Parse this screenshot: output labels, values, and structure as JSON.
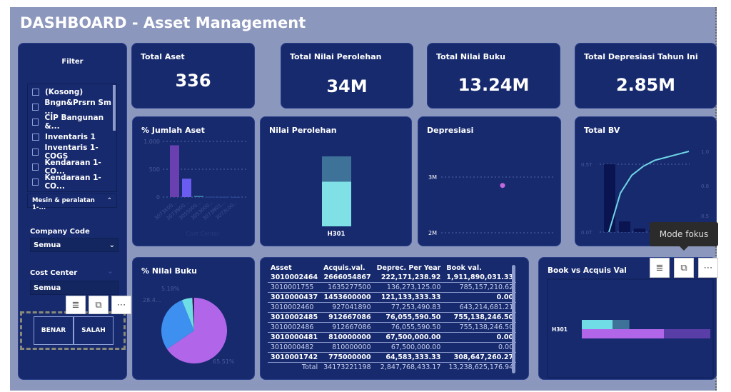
{
  "header": {
    "title": "DASHBOARD - Asset Management"
  },
  "filter": {
    "title": "Filter",
    "items": [
      "(Kosong)",
      "Bngn&Prsrn Sm ...",
      "CIP Bangunan &...",
      "Inventaris 1",
      "Inventaris 1-COGS",
      "Kendaraan 1-CO...",
      "Kendaraan 1-CO..."
    ],
    "selected": "Mesin & peralatan 1-...",
    "company_code": {
      "label": "Company Code",
      "value": "Semua"
    },
    "cost_center": {
      "label": "Cost Center",
      "value": "Semua"
    },
    "buttons": [
      "BENAR",
      "SALAH"
    ]
  },
  "kpis": [
    {
      "label": "Total Aset",
      "value": "336"
    },
    {
      "label": "Total Nilai Perolehan",
      "value": "34M"
    },
    {
      "label": "Total Nilai Buku",
      "value": "13.24M"
    },
    {
      "label": "Total Depresiasi Tahun Ini",
      "value": "2.85M"
    }
  ],
  "charts": {
    "jumlah_aset": {
      "title": "% Jumlah Aset",
      "type": "bar",
      "categories": [
        "3073K00...",
        "3073N00...",
        "3055000...",
        "3053000...",
        "3073N01...",
        "3073L00..."
      ],
      "values": [
        930,
        330,
        20,
        5,
        3,
        2
      ],
      "yticks": [
        "1,000",
        "500",
        "0"
      ],
      "xlabel": "Cost Center",
      "colors": [
        "#6a3fb0",
        "#6a5cf0",
        "#3a86a8",
        "#2f4a9a",
        "#2f4a9a",
        "#2f4a9a"
      ]
    },
    "nilai_perolehan": {
      "title": "Nilai Perolehan",
      "category": "H301",
      "segments": [
        {
          "value": 0.64,
          "color": "#7fe0e6"
        },
        {
          "value": 0.36,
          "color": "#3f7299"
        }
      ]
    },
    "depresiasi": {
      "title": "Depresiasi",
      "yticks": [
        "3M",
        "2M"
      ],
      "point": 2.85,
      "color": "#c16ae0"
    },
    "total_bv": {
      "title": "Total BV",
      "yticks_left": [
        "0.5T",
        "0.0T"
      ],
      "yticks_right": [
        "1.0",
        "0.8",
        "0.5"
      ],
      "bars": [
        0.76,
        0.12,
        0.04,
        0.02
      ],
      "line": [
        0.73,
        0.86,
        0.92,
        0.95,
        0.97,
        0.98,
        0.99,
        1.0
      ]
    },
    "nilai_buku": {
      "title": "% Nilai Buku",
      "type": "pie",
      "slices": [
        {
          "label": "65.51%",
          "value": 65.51,
          "color": "#b166ea"
        },
        {
          "label": "28.4...",
          "value": 28.4,
          "color": "#3d8ff0"
        },
        {
          "label": "5.18%",
          "value": 5.18,
          "color": "#6fdde6"
        },
        {
          "label": "",
          "value": 0.91,
          "color": "#3a1a55"
        }
      ]
    },
    "book_vs_acquis": {
      "title": "Book vs Acquis Val",
      "category": "H301",
      "bar1": [
        {
          "value": 0.24,
          "color": "#70dde6"
        },
        {
          "value": 0.13,
          "color": "#3f7299"
        }
      ],
      "bar2": [
        {
          "value": 0.64,
          "color": "#b166ea"
        },
        {
          "value": 0.36,
          "color": "#5a3ea8"
        }
      ]
    }
  },
  "table": {
    "columns": [
      "Asset",
      "Acquis.val.",
      "Deprec. Per Year",
      "Book val."
    ],
    "rows": [
      [
        "3010002464",
        "2666054867",
        "222,171,238.92",
        "1,911,890,031.33"
      ],
      [
        "3010001755",
        "1635277500",
        "136,273,125.00",
        "785,157,210.62"
      ],
      [
        "3010000437",
        "1453600000",
        "121,133,333.33",
        "0.00"
      ],
      [
        "3010002460",
        "927041890",
        "77,253,490.83",
        "643,214,681.21"
      ],
      [
        "3010002485",
        "912667086",
        "76,055,590.50",
        "755,138,246.50"
      ],
      [
        "3010002486",
        "912667086",
        "76,055,590.50",
        "755,138,246.50"
      ],
      [
        "3010000481",
        "810000000",
        "67,500,000.00",
        "0.00"
      ],
      [
        "3010000482",
        "810000000",
        "67,500,000.00",
        "0.00"
      ],
      [
        "3010001742",
        "775000000",
        "64,583,333.33",
        "308,647,260.27"
      ]
    ],
    "total": [
      "Total",
      "34173221198",
      "2,847,768,433.17",
      "13,238,625,176.94"
    ]
  },
  "toolbar": {
    "tooltip": "Mode fokus",
    "more": "⋯",
    "filter_icon": "≣",
    "focus_icon": "⧉"
  }
}
